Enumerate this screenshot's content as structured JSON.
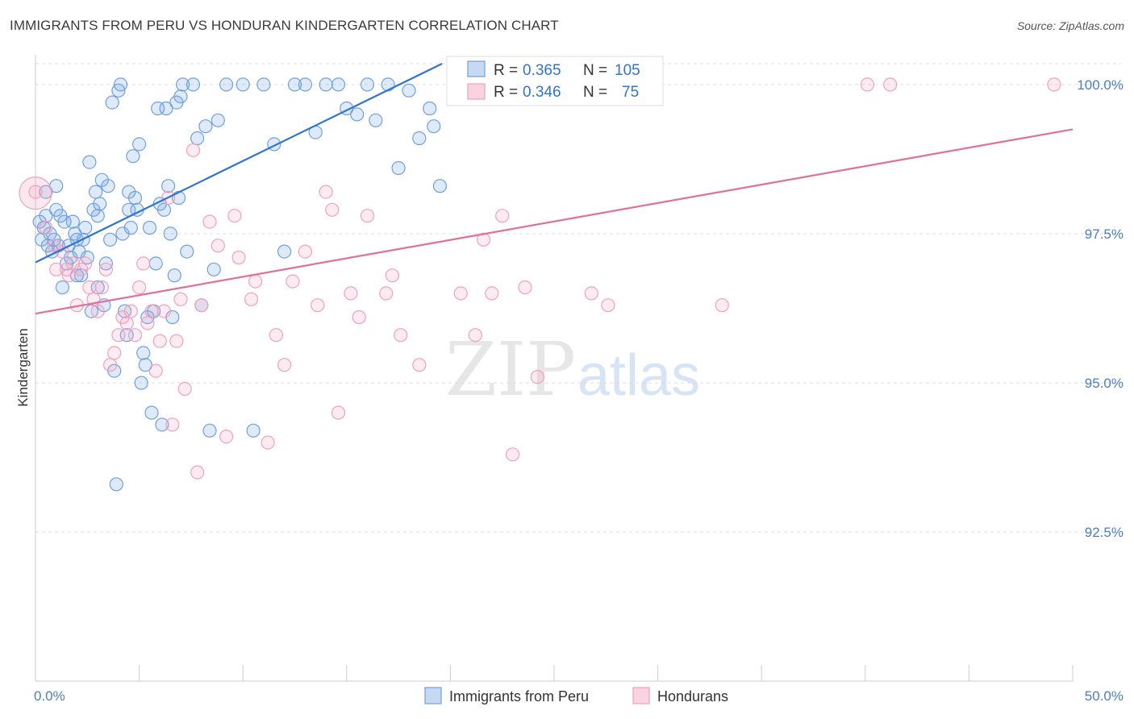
{
  "header": {
    "title": "IMMIGRANTS FROM PERU VS HONDURAN KINDERGARTEN CORRELATION CHART",
    "source": "Source: ZipAtlas.com"
  },
  "watermark": {
    "zip": "ZIP",
    "atlas": "atlas"
  },
  "colors": {
    "blue": "#6fa0e0",
    "blue_line": "#2f74d0",
    "pink": "#f0a0bc",
    "pink_line": "#e0709a",
    "tick_text": "#4a7cc9",
    "grid": "#dddddd"
  },
  "chart_data": {
    "type": "scatter",
    "title": "IMMIGRANTS FROM PERU VS HONDURAN KINDERGARTEN CORRELATION CHART",
    "xlabel": "",
    "ylabel": "Kindergarten",
    "xlim": [
      0,
      50
    ],
    "ylim": [
      90.0,
      100.35
    ],
    "x_tick_labels": [
      "0.0%",
      "50.0%"
    ],
    "y_ticks": [
      {
        "value": 100.0,
        "label": "100.0%"
      },
      {
        "value": 97.5,
        "label": "97.5%"
      },
      {
        "value": 95.0,
        "label": "95.0%"
      },
      {
        "value": 92.5,
        "label": "92.5%"
      }
    ],
    "grid": "horizontal dashed",
    "legend_top": [
      {
        "r_label": "R =",
        "r_value": "0.365",
        "n_label": "N =",
        "n_value": "105"
      },
      {
        "r_label": "R =",
        "r_value": "0.346",
        "n_label": "N =",
        "n_value": "75"
      }
    ],
    "legend_bottom_position": "bottom-center",
    "series": [
      {
        "name": "Immigrants from Peru",
        "color": "#6fa0e0",
        "trend": {
          "x": [
            0,
            19.6
          ],
          "y": [
            97.02,
            100.35
          ]
        },
        "points": [
          [
            0.2,
            97.7
          ],
          [
            0.3,
            97.4
          ],
          [
            0.4,
            97.6
          ],
          [
            0.5,
            97.8
          ],
          [
            0.6,
            97.3
          ],
          [
            0.7,
            97.5
          ],
          [
            0.8,
            97.2
          ],
          [
            0.9,
            97.4
          ],
          [
            1.0,
            98.3
          ],
          [
            1.1,
            97.3
          ],
          [
            1.2,
            97.8
          ],
          [
            1.3,
            96.6
          ],
          [
            1.4,
            97.7
          ],
          [
            1.5,
            97.0
          ],
          [
            1.6,
            97.3
          ],
          [
            1.7,
            97.1
          ],
          [
            1.8,
            97.7
          ],
          [
            1.9,
            97.5
          ],
          [
            2.0,
            97.4
          ],
          [
            2.1,
            97.2
          ],
          [
            2.2,
            96.8
          ],
          [
            2.3,
            97.4
          ],
          [
            2.4,
            97.6
          ],
          [
            2.5,
            97.1
          ],
          [
            2.6,
            98.7
          ],
          [
            2.7,
            96.2
          ],
          [
            2.8,
            97.9
          ],
          [
            2.9,
            98.2
          ],
          [
            3.0,
            97.8
          ],
          [
            3.1,
            98.0
          ],
          [
            3.2,
            98.4
          ],
          [
            3.3,
            96.3
          ],
          [
            3.4,
            97.0
          ],
          [
            3.5,
            98.3
          ],
          [
            3.6,
            97.4
          ],
          [
            3.7,
            99.7
          ],
          [
            3.8,
            95.2
          ],
          [
            3.9,
            93.3
          ],
          [
            4.0,
            99.9
          ],
          [
            4.1,
            100.0
          ],
          [
            4.2,
            97.5
          ],
          [
            4.3,
            96.2
          ],
          [
            4.4,
            95.8
          ],
          [
            4.5,
            98.2
          ],
          [
            4.6,
            97.6
          ],
          [
            4.7,
            98.8
          ],
          [
            4.8,
            98.1
          ],
          [
            4.9,
            97.9
          ],
          [
            5.0,
            99.0
          ],
          [
            5.1,
            95.0
          ],
          [
            5.2,
            95.5
          ],
          [
            5.3,
            95.3
          ],
          [
            5.4,
            96.1
          ],
          [
            5.5,
            97.6
          ],
          [
            5.6,
            94.5
          ],
          [
            5.7,
            96.2
          ],
          [
            5.8,
            97.0
          ],
          [
            5.9,
            99.6
          ],
          [
            6.0,
            98.0
          ],
          [
            6.1,
            94.3
          ],
          [
            6.2,
            97.9
          ],
          [
            6.3,
            99.6
          ],
          [
            6.4,
            98.3
          ],
          [
            6.5,
            97.5
          ],
          [
            6.6,
            96.1
          ],
          [
            6.7,
            96.8
          ],
          [
            6.8,
            99.7
          ],
          [
            6.9,
            98.1
          ],
          [
            7.0,
            99.8
          ],
          [
            7.1,
            100.0
          ],
          [
            7.3,
            97.2
          ],
          [
            7.6,
            100.0
          ],
          [
            7.8,
            99.1
          ],
          [
            8.0,
            96.3
          ],
          [
            8.2,
            99.3
          ],
          [
            8.4,
            94.2
          ],
          [
            8.6,
            96.9
          ],
          [
            8.8,
            99.4
          ],
          [
            9.2,
            100.0
          ],
          [
            10.0,
            100.0
          ],
          [
            10.5,
            94.2
          ],
          [
            11.0,
            100.0
          ],
          [
            11.5,
            99.0
          ],
          [
            12.0,
            97.2
          ],
          [
            12.5,
            100.0
          ],
          [
            13.0,
            100.0
          ],
          [
            13.5,
            99.2
          ],
          [
            14.0,
            100.0
          ],
          [
            14.6,
            100.0
          ],
          [
            15.0,
            99.6
          ],
          [
            15.5,
            99.5
          ],
          [
            16.0,
            100.0
          ],
          [
            16.4,
            99.4
          ],
          [
            17.0,
            100.0
          ],
          [
            17.5,
            98.6
          ],
          [
            18.0,
            99.9
          ],
          [
            18.5,
            99.1
          ],
          [
            19.0,
            99.6
          ],
          [
            19.2,
            99.3
          ],
          [
            19.5,
            98.3
          ],
          [
            0.5,
            98.2
          ],
          [
            1.0,
            97.9
          ],
          [
            2.0,
            96.8
          ],
          [
            3.0,
            96.6
          ],
          [
            4.5,
            97.9
          ]
        ]
      },
      {
        "name": "Hondurans",
        "color": "#f0a0bc",
        "trend": {
          "x": [
            0,
            50
          ],
          "y": [
            96.16,
            99.25
          ]
        },
        "points": [
          [
            0.0,
            98.2
          ],
          [
            0.5,
            97.6
          ],
          [
            0.9,
            97.3
          ],
          [
            1.0,
            96.9
          ],
          [
            1.3,
            97.2
          ],
          [
            1.5,
            96.9
          ],
          [
            1.6,
            96.8
          ],
          [
            1.8,
            97.0
          ],
          [
            2.0,
            96.3
          ],
          [
            2.2,
            96.9
          ],
          [
            2.4,
            97.0
          ],
          [
            2.6,
            96.6
          ],
          [
            2.8,
            96.4
          ],
          [
            3.0,
            96.2
          ],
          [
            3.2,
            96.6
          ],
          [
            3.4,
            96.9
          ],
          [
            3.6,
            95.3
          ],
          [
            3.8,
            95.5
          ],
          [
            4.0,
            95.8
          ],
          [
            4.2,
            96.1
          ],
          [
            4.4,
            96.0
          ],
          [
            4.6,
            96.2
          ],
          [
            4.8,
            95.8
          ],
          [
            5.0,
            96.6
          ],
          [
            5.2,
            97.0
          ],
          [
            5.4,
            96.0
          ],
          [
            5.6,
            96.2
          ],
          [
            5.8,
            95.2
          ],
          [
            6.0,
            95.7
          ],
          [
            6.2,
            96.2
          ],
          [
            6.4,
            98.1
          ],
          [
            6.6,
            94.3
          ],
          [
            6.8,
            95.7
          ],
          [
            7.0,
            96.4
          ],
          [
            7.2,
            94.9
          ],
          [
            7.6,
            98.9
          ],
          [
            7.8,
            93.5
          ],
          [
            8.0,
            96.3
          ],
          [
            8.4,
            97.7
          ],
          [
            8.8,
            97.3
          ],
          [
            9.2,
            94.1
          ],
          [
            9.6,
            97.8
          ],
          [
            9.8,
            97.1
          ],
          [
            10.4,
            96.4
          ],
          [
            10.6,
            96.7
          ],
          [
            11.2,
            94.0
          ],
          [
            11.6,
            95.8
          ],
          [
            12.0,
            95.3
          ],
          [
            12.4,
            96.7
          ],
          [
            13.0,
            97.2
          ],
          [
            13.6,
            96.3
          ],
          [
            14.0,
            98.2
          ],
          [
            14.3,
            97.9
          ],
          [
            14.6,
            94.5
          ],
          [
            15.2,
            96.5
          ],
          [
            15.6,
            96.1
          ],
          [
            16.0,
            97.8
          ],
          [
            16.9,
            96.5
          ],
          [
            17.2,
            96.8
          ],
          [
            17.6,
            95.8
          ],
          [
            18.5,
            95.3
          ],
          [
            20.5,
            96.5
          ],
          [
            21.2,
            95.8
          ],
          [
            21.6,
            97.4
          ],
          [
            22.0,
            96.5
          ],
          [
            22.5,
            97.8
          ],
          [
            23.6,
            96.6
          ],
          [
            23.0,
            93.8
          ],
          [
            24.2,
            95.1
          ],
          [
            26.8,
            96.5
          ],
          [
            27.6,
            96.3
          ],
          [
            33.1,
            96.3
          ],
          [
            40.1,
            100.0
          ],
          [
            41.2,
            100.0
          ],
          [
            49.1,
            100.0
          ]
        ]
      }
    ]
  },
  "legend_bottom": [
    {
      "label": "Immigrants from Peru"
    },
    {
      "label": "Hondurans"
    }
  ]
}
